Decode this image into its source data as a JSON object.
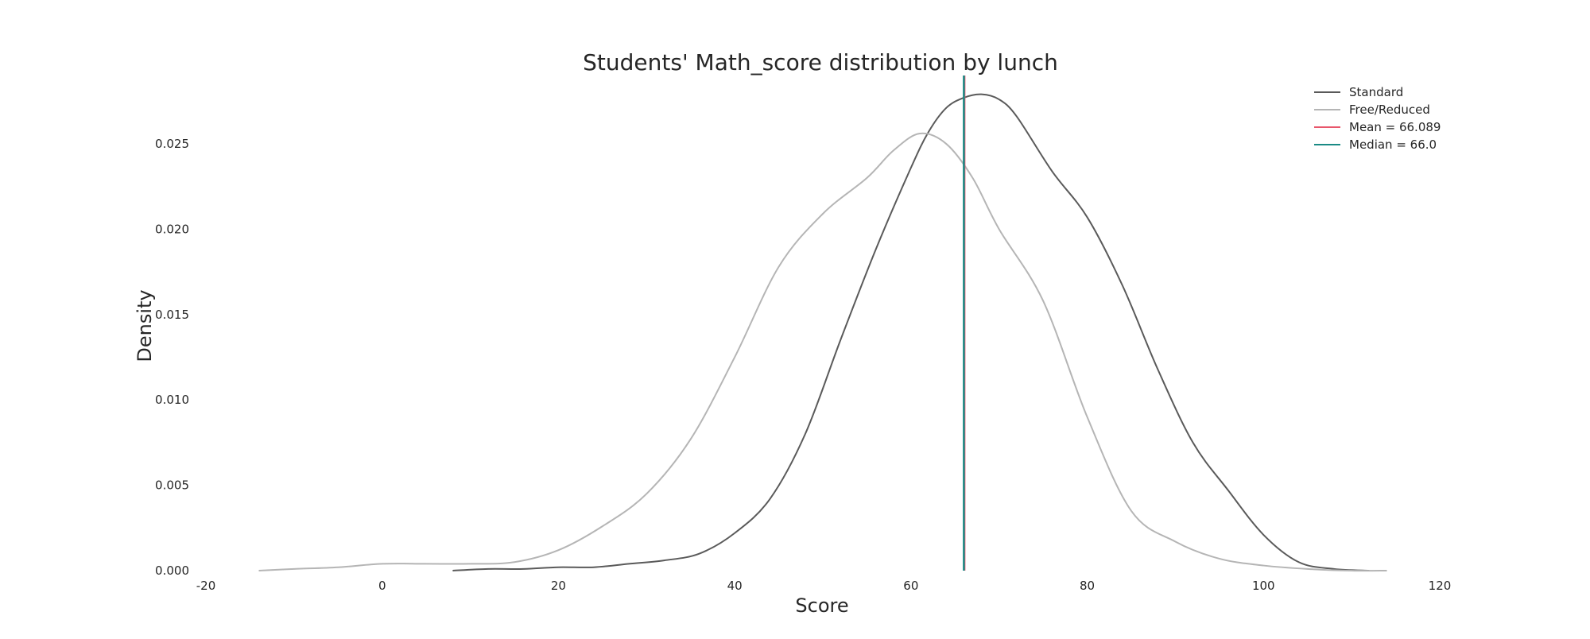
{
  "chart_data": {
    "type": "line",
    "title": "Students' Math_score distribution by lunch",
    "xlabel": "Score",
    "ylabel": "Density",
    "xlim": [
      -20,
      120
    ],
    "ylim": [
      0,
      0.029
    ],
    "x_ticks": [
      -20,
      0,
      20,
      40,
      60,
      80,
      100,
      120
    ],
    "y_ticks": [
      0.0,
      0.005,
      0.01,
      0.015,
      0.02,
      0.025
    ],
    "y_tick_labels": [
      "0.000",
      "0.005",
      "0.010",
      "0.015",
      "0.020",
      "0.025"
    ],
    "grid": false,
    "legend_position": "top-right",
    "series": [
      {
        "name": "Standard",
        "color": "#5a5a5a",
        "x": [
          8,
          12,
          16,
          20,
          24,
          28,
          32,
          36,
          40,
          44,
          48,
          52,
          56,
          60,
          62,
          64,
          66,
          68,
          70,
          72,
          76,
          80,
          84,
          88,
          92,
          96,
          100,
          104,
          108,
          112
        ],
        "y": [
          0.0,
          0.0001,
          0.0001,
          0.0002,
          0.0002,
          0.0004,
          0.0006,
          0.001,
          0.0022,
          0.0042,
          0.008,
          0.0135,
          0.0188,
          0.0236,
          0.0257,
          0.0271,
          0.0277,
          0.0279,
          0.0276,
          0.0266,
          0.0234,
          0.0207,
          0.0167,
          0.0118,
          0.0075,
          0.0047,
          0.0021,
          0.0005,
          0.0001,
          0.0
        ]
      },
      {
        "name": "Free/Reduced",
        "color": "#b5b5b5",
        "x": [
          -14,
          -10,
          -5,
          0,
          5,
          10,
          15,
          20,
          25,
          30,
          35,
          40,
          45,
          50,
          55,
          58,
          61,
          64,
          67,
          70,
          75,
          80,
          85,
          90,
          95,
          100,
          105,
          110,
          114
        ],
        "y": [
          0.0,
          0.0001,
          0.0002,
          0.0004,
          0.0004,
          0.0004,
          0.0005,
          0.0012,
          0.0026,
          0.0045,
          0.0077,
          0.0125,
          0.0178,
          0.0209,
          0.023,
          0.0246,
          0.0256,
          0.025,
          0.023,
          0.02,
          0.0158,
          0.009,
          0.0035,
          0.0017,
          0.0007,
          0.0003,
          0.0001,
          0.0,
          0.0
        ]
      }
    ],
    "reference_lines": [
      {
        "name": "Mean = 66.089",
        "x": 66.089,
        "color": "#e8566b"
      },
      {
        "name": "Median = 66.0",
        "x": 66.0,
        "color": "#1a8a85"
      }
    ]
  }
}
